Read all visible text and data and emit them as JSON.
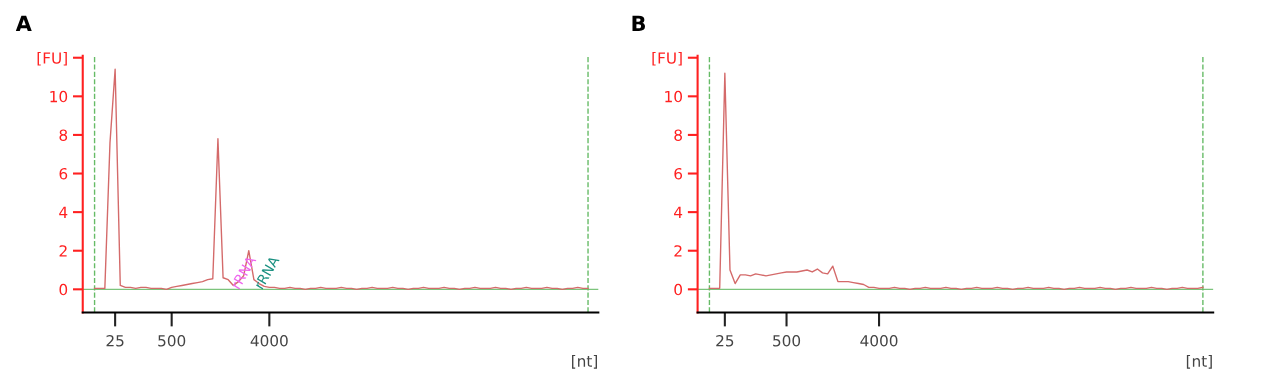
{
  "chart_data": [
    {
      "type": "line",
      "title": "A",
      "xlabel": "[nt]",
      "categories": [
        null,
        null,
        null,
        null,
        "25",
        null,
        null,
        null,
        null,
        null,
        null,
        null,
        null,
        null,
        null,
        "500",
        null,
        null,
        null,
        null,
        null,
        null,
        null,
        null,
        null,
        null,
        null,
        null,
        null,
        null,
        null,
        null,
        null,
        null,
        "4000",
        null,
        null,
        null,
        null,
        null,
        null,
        null,
        null,
        null,
        null,
        null,
        null,
        null,
        null,
        null,
        null,
        null,
        null,
        null,
        null,
        null,
        null,
        null,
        null,
        null,
        null,
        null,
        null,
        null,
        null,
        null,
        null,
        null,
        null,
        null,
        null,
        null,
        null,
        null,
        null,
        null,
        null,
        null,
        null,
        null,
        null,
        null,
        null,
        null,
        null,
        null,
        null,
        null,
        null,
        null,
        null,
        null,
        null,
        null,
        null,
        null,
        null
      ],
      "series": [
        {
          "color": "#d46a6a",
          "values": [
            0.05,
            0.05,
            0.05,
            7.6,
            11.4,
            0.2,
            0.1,
            0.1,
            0.05,
            0.1,
            0.1,
            0.05,
            0.05,
            0.05,
            0.0,
            0.1,
            0.15,
            0.2,
            0.25,
            0.3,
            0.35,
            0.4,
            0.5,
            0.55,
            7.8,
            0.6,
            0.5,
            0.2,
            0.4,
            0.7,
            2.0,
            0.5,
            0.3,
            0.15,
            0.1,
            0.1,
            0.05,
            0.05,
            0.1,
            0.05,
            0.05,
            0.0,
            0.05,
            0.05,
            0.1,
            0.05,
            0.05,
            0.05,
            0.1,
            0.05,
            0.05,
            0.0,
            0.05,
            0.05,
            0.1,
            0.05,
            0.05,
            0.05,
            0.1,
            0.05,
            0.05,
            0.0,
            0.05,
            0.05,
            0.1,
            0.05,
            0.05,
            0.05,
            0.1,
            0.05,
            0.05,
            0.0,
            0.05,
            0.05,
            0.1,
            0.05,
            0.05,
            0.05,
            0.1,
            0.05,
            0.05,
            0.0,
            0.05,
            0.05,
            0.1,
            0.05,
            0.05,
            0.05,
            0.1,
            0.05,
            0.05,
            0.0,
            0.05,
            0.05,
            0.1,
            0.05,
            0.05
          ]
        }
      ],
      "ylim": [
        -1.2,
        12.1
      ],
      "yticks": [
        0,
        2,
        4,
        6,
        8,
        10,
        {
          "value": 12,
          "label": "[FU]"
        }
      ],
      "ref_lines": [
        {
          "axis": "y",
          "value": 0,
          "color": "#7cc47c",
          "line_style": "solid"
        }
      ],
      "annotations": [
        "rRNA",
        "rRNA"
      ]
    },
    {
      "type": "line",
      "title": "B",
      "xlabel": "[nt]",
      "categories": [
        null,
        null,
        null,
        "25",
        null,
        null,
        null,
        null,
        null,
        null,
        null,
        null,
        null,
        null,
        null,
        "500",
        null,
        null,
        null,
        null,
        null,
        null,
        null,
        null,
        null,
        null,
        null,
        null,
        null,
        null,
        null,
        null,
        null,
        "4000",
        null,
        null,
        null,
        null,
        null,
        null,
        null,
        null,
        null,
        null,
        null,
        null,
        null,
        null,
        null,
        null,
        null,
        null,
        null,
        null,
        null,
        null,
        null,
        null,
        null,
        null,
        null,
        null,
        null,
        null,
        null,
        null,
        null,
        null,
        null,
        null,
        null,
        null,
        null,
        null,
        null,
        null,
        null,
        null,
        null,
        null,
        null,
        null,
        null,
        null,
        null,
        null,
        null,
        null,
        null,
        null,
        null,
        null,
        null,
        null,
        null,
        null,
        null
      ],
      "series": [
        {
          "color": "#d46a6a",
          "values": [
            0.05,
            0.05,
            0.05,
            11.2,
            1.0,
            0.3,
            0.75,
            0.75,
            0.7,
            0.8,
            0.75,
            0.7,
            0.75,
            0.8,
            0.85,
            0.9,
            0.9,
            0.9,
            0.95,
            1.0,
            0.9,
            1.05,
            0.85,
            0.8,
            1.2,
            0.4,
            0.4,
            0.4,
            0.35,
            0.3,
            0.25,
            0.1,
            0.1,
            0.05,
            0.05,
            0.05,
            0.1,
            0.05,
            0.05,
            0.0,
            0.05,
            0.05,
            0.1,
            0.05,
            0.05,
            0.05,
            0.1,
            0.05,
            0.05,
            0.0,
            0.05,
            0.05,
            0.1,
            0.05,
            0.05,
            0.05,
            0.1,
            0.05,
            0.05,
            0.0,
            0.05,
            0.05,
            0.1,
            0.05,
            0.05,
            0.05,
            0.1,
            0.05,
            0.05,
            0.0,
            0.05,
            0.05,
            0.1,
            0.05,
            0.05,
            0.05,
            0.1,
            0.05,
            0.05,
            0.0,
            0.05,
            0.05,
            0.1,
            0.05,
            0.05,
            0.05,
            0.1,
            0.05,
            0.05,
            0.0,
            0.05,
            0.05,
            0.1,
            0.05,
            0.05,
            0.05,
            0.1
          ]
        }
      ],
      "ylim": [
        -1.2,
        12.1
      ],
      "yticks": [
        0,
        2,
        4,
        6,
        8,
        10,
        {
          "value": 12,
          "label": "[FU]"
        }
      ],
      "ref_lines": [
        {
          "axis": "y",
          "value": 0,
          "color": "#7cc47c",
          "line_style": "solid"
        }
      ]
    }
  ]
}
